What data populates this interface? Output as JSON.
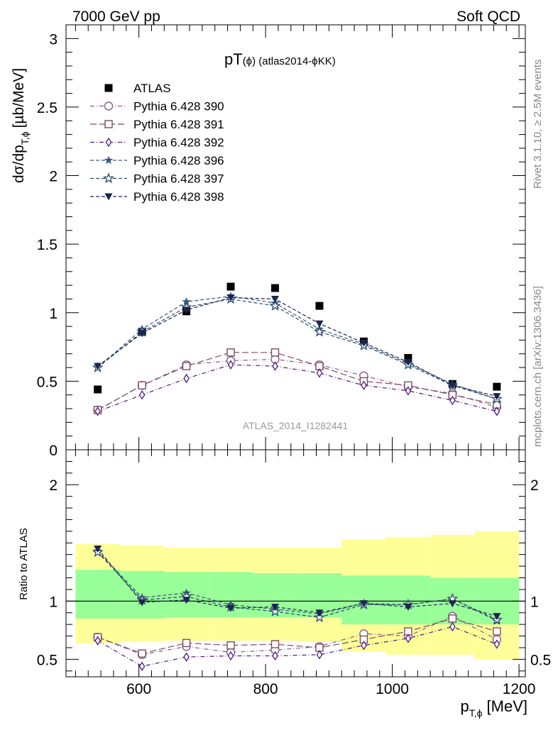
{
  "header": {
    "left": "7000 GeV pp",
    "right": "Soft QCD"
  },
  "side_texts": {
    "rivet": "Rivet 3.1.10, ≥ 2.5M events",
    "mcplots": "mcplots.cern.ch [arXiv:1306.3436]"
  },
  "chart_data": [
    {
      "type": "scatter",
      "title_main": "pT",
      "title_small": "(ϕ) (atlas2014-ϕKK)",
      "watermark": "ATLAS_2014_I1282441",
      "ylabel_main": "dσ/dp",
      "ylabel_sub": "T,ϕ",
      "ylabel_unit": "[µb/MeV]",
      "ylim": [
        0,
        3.1
      ],
      "yticks": [
        "0",
        "0.5",
        "1",
        "1.5",
        "2",
        "2.5",
        "3"
      ],
      "xlim": [
        485,
        1210
      ],
      "legend_placement": "top-left",
      "x": [
        535,
        605,
        675,
        745,
        815,
        885,
        955,
        1025,
        1095,
        1165
      ],
      "series": [
        {
          "name": "ATLAS",
          "marker": "square-filled",
          "color": "#000000",
          "values": [
            0.44,
            0.86,
            1.01,
            1.19,
            1.18,
            1.05,
            0.79,
            0.67,
            0.48,
            0.46
          ]
        },
        {
          "name": "Pythia 6.428 390",
          "marker": "circle-open",
          "color": "#8a5a8a",
          "dash": "6,3,1,3",
          "values": [
            0.29,
            0.47,
            0.62,
            0.65,
            0.66,
            0.62,
            0.54,
            0.46,
            0.41,
            0.31
          ]
        },
        {
          "name": "Pythia 6.428 391",
          "marker": "square-open",
          "color": "#7a4c62",
          "dash": "9,4",
          "values": [
            0.29,
            0.47,
            0.61,
            0.71,
            0.71,
            0.61,
            0.5,
            0.47,
            0.4,
            0.33
          ]
        },
        {
          "name": "Pythia 6.428 392",
          "marker": "diamond-open",
          "color": "#4a1a86",
          "dash": "6,3,1,3",
          "values": [
            0.28,
            0.4,
            0.52,
            0.62,
            0.61,
            0.56,
            0.47,
            0.43,
            0.36,
            0.28
          ]
        },
        {
          "name": "Pythia 6.428 396",
          "marker": "star-filled",
          "color": "#3a5a7a",
          "dash": "5,3",
          "values": [
            0.6,
            0.88,
            1.08,
            1.12,
            1.07,
            0.88,
            0.77,
            0.63,
            0.48,
            0.37
          ]
        },
        {
          "name": "Pythia 6.428 397",
          "marker": "star-open",
          "color": "#2a4a6a",
          "dash": "5,3",
          "values": [
            0.6,
            0.86,
            1.04,
            1.1,
            1.05,
            0.86,
            0.76,
            0.62,
            0.47,
            0.37
          ]
        },
        {
          "name": "Pythia 6.428 398",
          "marker": "triangle-down-filled",
          "color": "#1c2450",
          "dash": "5,3",
          "values": [
            0.61,
            0.85,
            1.02,
            1.11,
            1.1,
            0.92,
            0.78,
            0.64,
            0.47,
            0.39
          ]
        }
      ]
    },
    {
      "type": "scatter",
      "ylabel": "Ratio to ATLAS",
      "ylim": [
        0.35,
        2.3
      ],
      "yticks": [
        "0.5",
        "1",
        "2"
      ],
      "xlabel_main": "p",
      "xlabel_sub": "T,ϕ",
      "xlabel_unit": "[MeV]",
      "xlim": [
        485,
        1210
      ],
      "xticks": [
        "600",
        "800",
        "1000",
        "1200"
      ],
      "reference_line": 1,
      "bands": [
        {
          "x0": 500,
          "x1": 570,
          "inner": [
            0.85,
            1.27
          ],
          "outer": [
            0.64,
            1.49
          ]
        },
        {
          "x0": 570,
          "x1": 640,
          "inner": [
            0.85,
            1.26
          ],
          "outer": [
            0.65,
            1.48
          ]
        },
        {
          "x0": 640,
          "x1": 710,
          "inner": [
            0.86,
            1.25
          ],
          "outer": [
            0.66,
            1.46
          ]
        },
        {
          "x0": 710,
          "x1": 780,
          "inner": [
            0.86,
            1.25
          ],
          "outer": [
            0.66,
            1.46
          ]
        },
        {
          "x0": 780,
          "x1": 850,
          "inner": [
            0.86,
            1.24
          ],
          "outer": [
            0.66,
            1.46
          ]
        },
        {
          "x0": 850,
          "x1": 920,
          "inner": [
            0.86,
            1.24
          ],
          "outer": [
            0.65,
            1.46
          ]
        },
        {
          "x0": 920,
          "x1": 990,
          "inner": [
            0.8,
            1.22
          ],
          "outer": [
            0.57,
            1.53
          ]
        },
        {
          "x0": 990,
          "x1": 1060,
          "inner": [
            0.8,
            1.22
          ],
          "outer": [
            0.54,
            1.55
          ]
        },
        {
          "x0": 1060,
          "x1": 1130,
          "inner": [
            0.8,
            1.2
          ],
          "outer": [
            0.54,
            1.57
          ]
        },
        {
          "x0": 1130,
          "x1": 1200,
          "inner": [
            0.8,
            1.2
          ],
          "outer": [
            0.5,
            1.6
          ]
        }
      ],
      "x": [
        535,
        605,
        675,
        745,
        815,
        885,
        955,
        1025,
        1095,
        1165
      ],
      "series": [
        {
          "name": "Pythia 6.428 390",
          "values": [
            0.69,
            0.54,
            0.61,
            0.56,
            0.58,
            0.61,
            0.72,
            0.7,
            0.87,
            0.67
          ]
        },
        {
          "name": "Pythia 6.428 391",
          "values": [
            0.69,
            0.55,
            0.64,
            0.62,
            0.63,
            0.6,
            0.67,
            0.74,
            0.85,
            0.74
          ]
        },
        {
          "name": "Pythia 6.428 392",
          "values": [
            0.66,
            0.44,
            0.52,
            0.53,
            0.53,
            0.54,
            0.62,
            0.68,
            0.78,
            0.63
          ]
        },
        {
          "name": "Pythia 6.428 396",
          "values": [
            1.43,
            1.03,
            1.07,
            0.97,
            0.93,
            0.89,
            0.98,
            0.97,
            1.02,
            0.83
          ]
        },
        {
          "name": "Pythia 6.428 397",
          "values": [
            1.42,
            1.01,
            1.04,
            0.95,
            0.91,
            0.86,
            0.97,
            0.97,
            1.02,
            0.84
          ]
        },
        {
          "name": "Pythia 6.428 398",
          "values": [
            1.45,
            0.99,
            1.01,
            0.94,
            0.95,
            0.9,
            0.98,
            0.95,
            0.98,
            0.87
          ]
        }
      ]
    }
  ]
}
